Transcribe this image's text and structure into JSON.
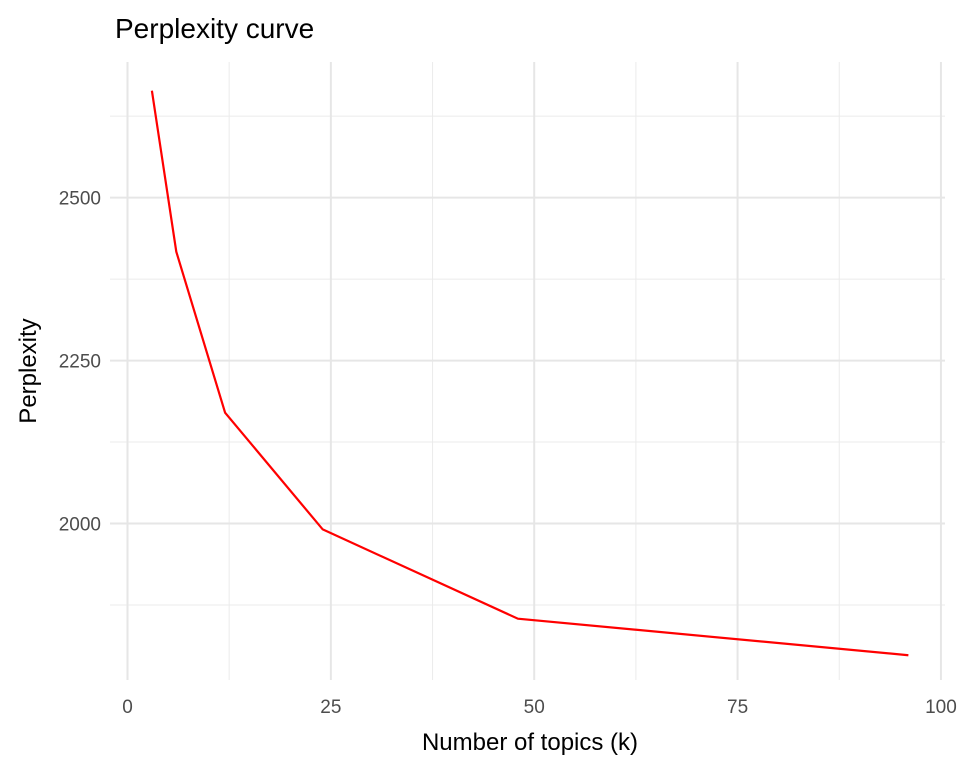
{
  "chart_data": {
    "type": "line",
    "title": "Perplexity curve",
    "xlabel": "Number of topics (k)",
    "ylabel": "Perplexity",
    "xlim": [
      -2.15,
      100.5
    ],
    "ylim": [
      1760,
      2708
    ],
    "x_ticks": [
      0,
      25,
      50,
      75,
      100
    ],
    "y_ticks": [
      2000,
      2250,
      2500
    ],
    "x_minor": [
      12.5,
      37.5,
      62.5,
      87.5
    ],
    "y_minor": [
      1875,
      2125,
      2375,
      2625
    ],
    "grid": true,
    "series": [
      {
        "color": "#ff0000",
        "x": [
          3,
          6,
          12,
          24,
          48,
          96
        ],
        "y": [
          2664,
          2417,
          2170,
          1991,
          1854,
          1798
        ]
      }
    ]
  }
}
